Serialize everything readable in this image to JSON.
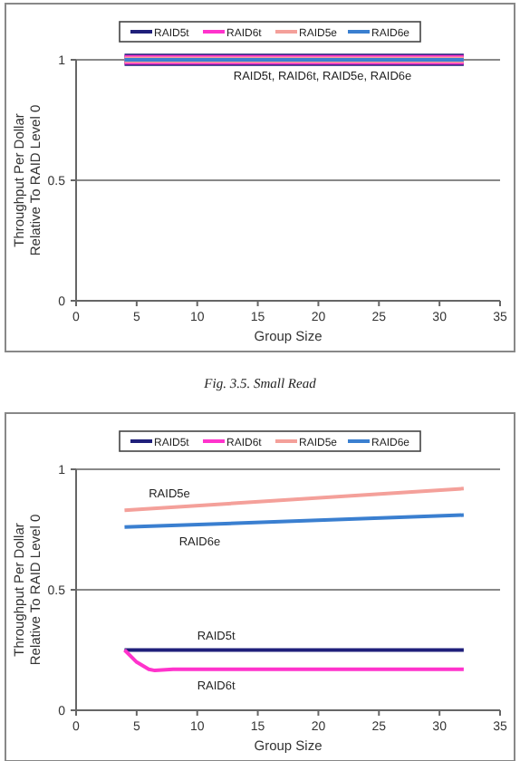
{
  "chart_data": [
    {
      "type": "line",
      "xlabel": "Group Size",
      "ylabel": "Throughput Per Dollar\nRelative To RAID Level 0",
      "x": [
        4,
        32
      ],
      "xlim": [
        0,
        35
      ],
      "xticks": [
        0,
        5,
        10,
        15,
        20,
        25,
        30,
        35
      ],
      "ylim": [
        0,
        1
      ],
      "yticks": [
        0,
        0.5,
        1
      ],
      "grid": "y",
      "legend": "top",
      "marker": "none",
      "series": [
        {
          "name": "RAID5t",
          "color": "#1f1f7a",
          "values": [
            1,
            1
          ]
        },
        {
          "name": "RAID6t",
          "color": "#ff33cc",
          "values": [
            1,
            1
          ]
        },
        {
          "name": "RAID5e",
          "color": "#f4a09a",
          "values": [
            1,
            1
          ]
        },
        {
          "name": "RAID6e",
          "color": "#3a7fd0",
          "values": [
            1,
            1
          ]
        }
      ],
      "annotations": [
        {
          "text": "RAID5t, RAID6t, RAID5e, RAID6e",
          "x": 13,
          "y": 1
        },
        "Fig. 3.5. Small Read"
      ]
    },
    {
      "type": "line",
      "xlabel": "Group Size",
      "ylabel": "Throughput Per Dollar\nRelative To RAID Level 0",
      "xlim": [
        0,
        35
      ],
      "xticks": [
        0,
        5,
        10,
        15,
        20,
        25,
        30,
        35
      ],
      "ylim": [
        0,
        1
      ],
      "yticks": [
        0,
        0.5,
        1
      ],
      "grid": "y",
      "legend": "top",
      "marker": "none",
      "series": [
        {
          "name": "RAID5t",
          "color": "#1f1f7a",
          "x": [
            4,
            32
          ],
          "values": [
            0.25,
            0.25
          ]
        },
        {
          "name": "RAID6t",
          "color": "#ff33cc",
          "x": [
            4,
            5,
            6,
            6.5,
            8,
            32
          ],
          "values": [
            0.25,
            0.2,
            0.17,
            0.165,
            0.17,
            0.17
          ]
        },
        {
          "name": "RAID5e",
          "color": "#f4a09a",
          "x": [
            4,
            32
          ],
          "values": [
            0.83,
            0.92
          ]
        },
        {
          "name": "RAID6e",
          "color": "#3a7fd0",
          "x": [
            4,
            32
          ],
          "values": [
            0.76,
            0.81
          ]
        }
      ],
      "annotations": [
        {
          "text": "RAID5e",
          "x": 6,
          "y": 0.84
        },
        {
          "text": "RAID6e",
          "x": 8.5,
          "y": 0.767
        },
        {
          "text": "RAID5t",
          "x": 10,
          "y": 0.25
        },
        {
          "text": "RAID6t",
          "x": 10,
          "y": 0.17
        }
      ]
    }
  ]
}
